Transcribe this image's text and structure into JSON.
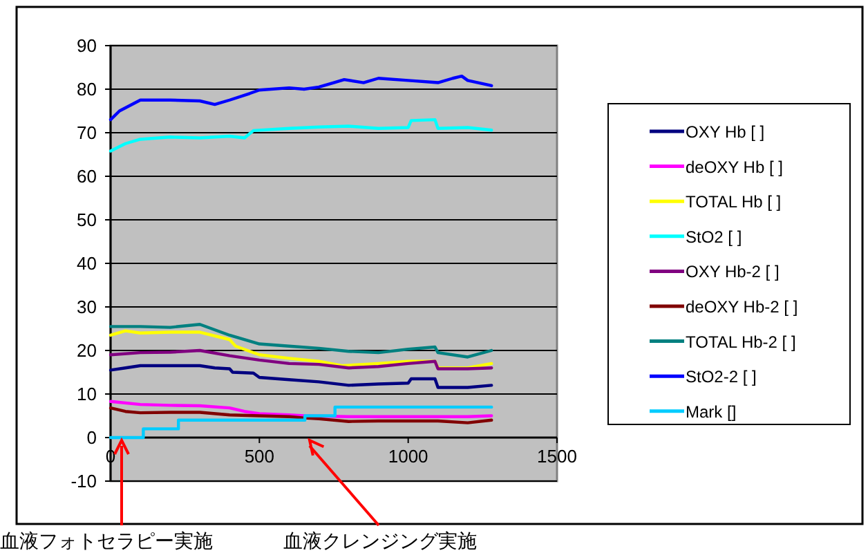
{
  "chart_data": {
    "type": "line",
    "xlim": [
      0,
      1500
    ],
    "xticks": [
      0,
      500,
      1000,
      1500
    ],
    "ylim": [
      -10,
      90
    ],
    "yticks": [
      -10,
      0,
      10,
      20,
      30,
      40,
      50,
      60,
      70,
      80,
      90
    ],
    "grid": "y",
    "legend": "right",
    "marker": "none",
    "line_style": "solid",
    "series": [
      {
        "name": "OXY Hb [ ]",
        "color": "#000080",
        "x": [
          0,
          50,
          100,
          200,
          300,
          350,
          400,
          410,
          480,
          500,
          600,
          700,
          800,
          900,
          1000,
          1010,
          1090,
          1100,
          1200,
          1280
        ],
        "values": [
          15.5,
          16,
          16.5,
          16.5,
          16.5,
          16,
          15.8,
          15,
          14.8,
          13.8,
          13.3,
          12.8,
          12,
          12.3,
          12.5,
          13.5,
          13.5,
          11.5,
          11.5,
          12
        ]
      },
      {
        "name": "deOXY Hb [ ]",
        "color": "#ff00ff",
        "x": [
          0,
          100,
          200,
          300,
          400,
          450,
          500,
          600,
          650,
          800,
          1000,
          1100,
          1200,
          1280
        ],
        "values": [
          8.3,
          7.6,
          7.4,
          7.3,
          6.8,
          6,
          5.5,
          5.2,
          5,
          4.8,
          4.8,
          4.8,
          4.8,
          5
        ]
      },
      {
        "name": "TOTAL Hb [ ]",
        "color": "#ffff00",
        "x": [
          0,
          50,
          100,
          200,
          300,
          400,
          420,
          500,
          600,
          700,
          780,
          900,
          1000,
          1090,
          1100,
          1200,
          1280
        ],
        "values": [
          23.5,
          24.5,
          24,
          24.2,
          24.2,
          22.5,
          21,
          19,
          18.2,
          17.5,
          16.5,
          17,
          17.5,
          17.5,
          16,
          16,
          17
        ]
      },
      {
        "name": "StO2 [ ]",
        "color": "#00ffff",
        "x": [
          0,
          50,
          100,
          200,
          300,
          400,
          450,
          480,
          600,
          700,
          800,
          900,
          1000,
          1010,
          1090,
          1100,
          1200,
          1280
        ],
        "values": [
          65.8,
          67.5,
          68.5,
          69,
          68.8,
          69.2,
          68.8,
          70.5,
          71,
          71.3,
          71.5,
          71,
          71.2,
          72.8,
          73,
          71,
          71.2,
          70.6
        ]
      },
      {
        "name": "OXY Hb-2 [ ]",
        "color": "#800080",
        "x": [
          0,
          100,
          200,
          300,
          400,
          500,
          600,
          700,
          800,
          900,
          1000,
          1090,
          1100,
          1200,
          1280
        ],
        "values": [
          19,
          19.5,
          19.6,
          20,
          18.8,
          17.8,
          17,
          16.8,
          16,
          16.3,
          17,
          17.5,
          15.8,
          15.8,
          16
        ]
      },
      {
        "name": "deOXY Hb-2 [ ]",
        "color": "#800000",
        "x": [
          0,
          50,
          100,
          200,
          300,
          400,
          500,
          600,
          650,
          700,
          800,
          900,
          1000,
          1100,
          1200,
          1280
        ],
        "values": [
          6.8,
          6,
          5.7,
          5.8,
          5.8,
          5.2,
          5,
          4.8,
          4.5,
          4.3,
          3.7,
          3.8,
          3.8,
          3.8,
          3.4,
          4
        ]
      },
      {
        "name": "TOTAL Hb-2 [ ]",
        "color": "#008080",
        "x": [
          0,
          100,
          200,
          300,
          400,
          500,
          600,
          700,
          800,
          900,
          1000,
          1090,
          1100,
          1200,
          1280
        ],
        "values": [
          25.5,
          25.5,
          25.3,
          26,
          23.5,
          21.5,
          21,
          20.5,
          19.8,
          19.5,
          20.3,
          20.8,
          19.5,
          18.5,
          20
        ]
      },
      {
        "name": "StO2-2 [ ]",
        "color": "#0000ff",
        "x": [
          0,
          30,
          100,
          200,
          300,
          350,
          400,
          467,
          500,
          600,
          650,
          700,
          750,
          785,
          850,
          900,
          1000,
          1100,
          1150,
          1180,
          1200,
          1280
        ],
        "values": [
          73,
          75,
          77.5,
          77.5,
          77.3,
          76.5,
          77.5,
          79,
          79.8,
          80.3,
          80,
          80.5,
          81.5,
          82.2,
          81.5,
          82.5,
          82,
          81.5,
          82.5,
          83,
          82,
          80.8
        ]
      },
      {
        "name": "Mark []",
        "color": "#00ccff",
        "type": "step",
        "x": [
          0,
          110,
          228,
          653,
          754,
          1280
        ],
        "values": [
          0,
          2,
          4,
          5,
          7,
          7
        ]
      }
    ],
    "annotations": [
      "血液フォトセラピー実施",
      "血液クレンジング実施"
    ]
  }
}
